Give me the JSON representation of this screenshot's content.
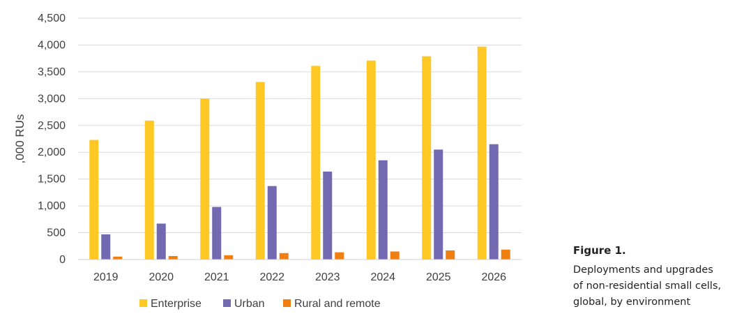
{
  "chart_data": {
    "type": "bar",
    "categories": [
      "2019",
      "2020",
      "2021",
      "2022",
      "2023",
      "2024",
      "2025",
      "2026"
    ],
    "series": [
      {
        "name": "Enterprise",
        "color": "#FFC824",
        "values": [
          2230,
          2590,
          3000,
          3310,
          3610,
          3710,
          3790,
          3970
        ]
      },
      {
        "name": "Urban",
        "color": "#7369B1",
        "values": [
          470,
          670,
          980,
          1370,
          1640,
          1850,
          2050,
          2150
        ]
      },
      {
        "name": "Rural and remote",
        "color": "#F07F12",
        "values": [
          55,
          65,
          80,
          120,
          135,
          150,
          170,
          185
        ]
      }
    ],
    "ylabel": ",000 RUs",
    "xlabel": "",
    "ylim": [
      0,
      4500
    ],
    "yticks": [
      "0",
      "500",
      "1,000",
      "1,500",
      "2,000",
      "2,500",
      "3,000",
      "3,500",
      "4,000",
      "4,500"
    ],
    "grid": true,
    "legend_position": "bottom"
  },
  "caption": {
    "title": "Figure 1.",
    "lines": [
      "Deployments and upgrades",
      "of non-residential small cells,",
      "global, by environment"
    ]
  }
}
